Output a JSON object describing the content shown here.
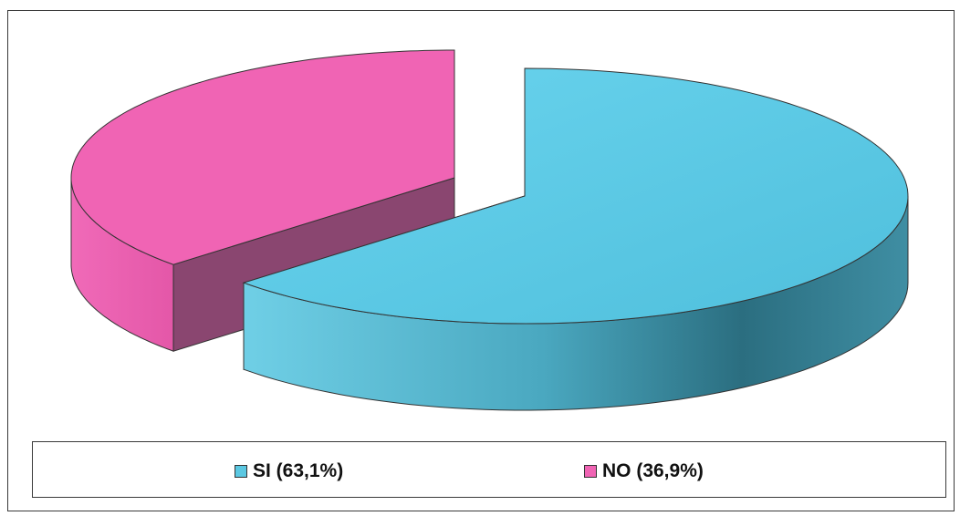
{
  "chart_data": {
    "type": "pie",
    "style": "3d-exploded",
    "title": "",
    "slices": [
      {
        "label": "SI (63,1%)",
        "value": 63.1,
        "color": "#5bc8e2",
        "side_color": "#3d8ea3"
      },
      {
        "label": "NO (36,9%)",
        "value": 36.9,
        "color": "#f064b4",
        "side_color": "#8a4670"
      }
    ],
    "legend_position": "bottom"
  }
}
